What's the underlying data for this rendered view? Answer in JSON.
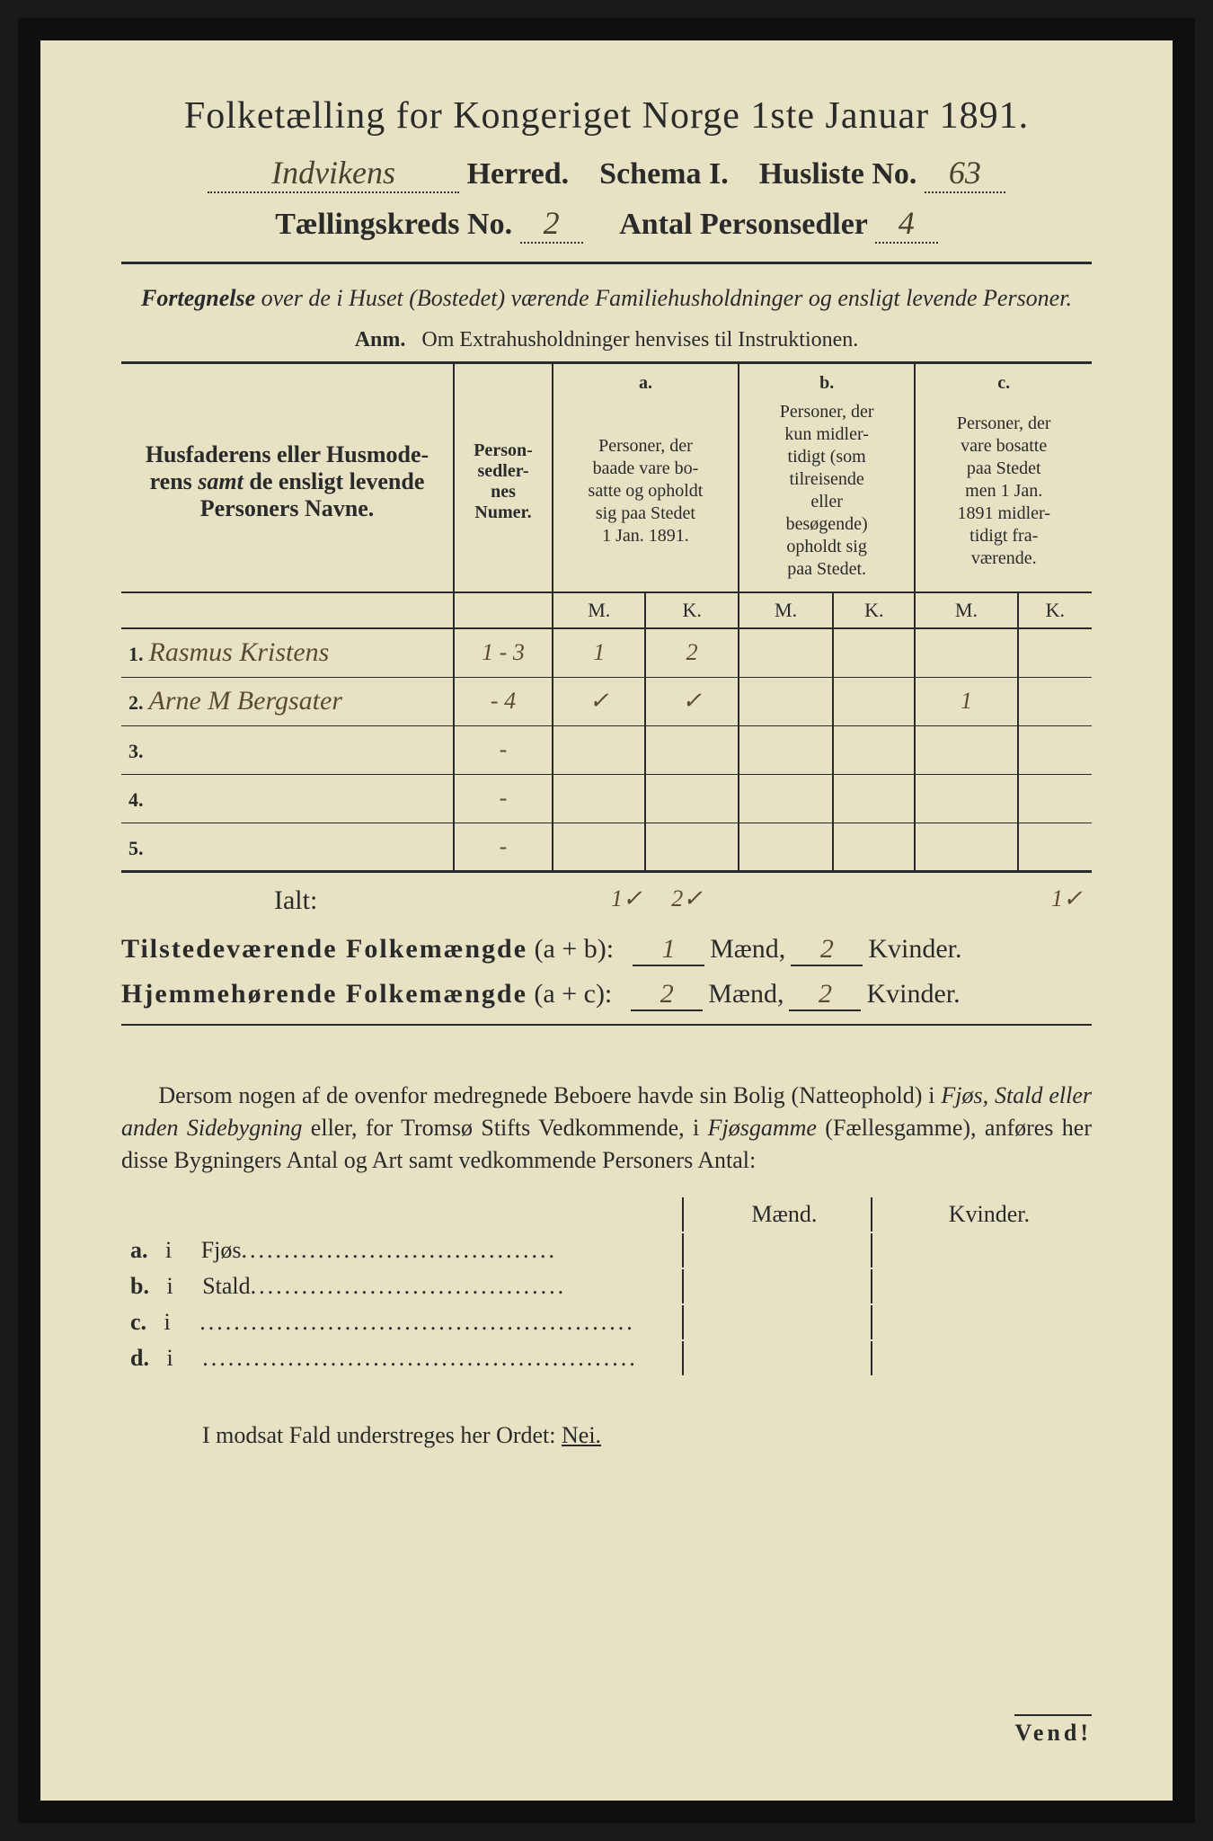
{
  "colors": {
    "paper": "#e8e2c4",
    "ink": "#2a2a2a",
    "border": "#0f0f0f",
    "handwriting": "#5a4a35"
  },
  "typography": {
    "title_fontsize": 42,
    "header_fontsize": 34,
    "body_fontsize": 26,
    "table_header_fontsize": 20,
    "font_family": "Times New Roman"
  },
  "title": "Folketælling for Kongeriget Norge 1ste Januar 1891.",
  "line2": {
    "herred_hw": "Indvikens",
    "herred_label": "Herred.",
    "schema_label": "Schema I.",
    "husliste_label": "Husliste No.",
    "husliste_hw": "63"
  },
  "line3": {
    "kreds_label": "Tællingskreds No.",
    "kreds_hw": "2",
    "antal_label": "Antal Personsedler",
    "antal_hw": "4"
  },
  "subtitle": "Fortegnelse over de i Huset (Bostedet) værende Familiehusholdninger og ensligt levende Personer.",
  "subtitle_prefix": "Fortegnelse",
  "subtitle_rest": " over de i Huset (Bostedet) værende Familiehusholdninger og ensligt levende Personer.",
  "anm_label": "Anm.",
  "anm_text": "Om Extrahusholdninger henvises til Instruktionen.",
  "table": {
    "col1_header": "Husfaderens eller Husmoderens samt de ensligt levende Personers Navne.",
    "col1_header_samt": "samt",
    "col2_header": "Person-sedler-nes Numer.",
    "col_a_label": "a.",
    "col_a_text": "Personer, der baade vare bo-satte og opholdt sig paa Stedet 1 Jan. 1891.",
    "col_b_label": "b.",
    "col_b_text": "Personer, der kun midler-tidigt (som tilreisende eller besøgende) opholdt sig paa Stedet.",
    "col_c_label": "c.",
    "col_c_text": "Personer, der vare bosatte paa Stedet men 1 Jan. 1891 midler-tidigt fra-værende.",
    "m_label": "M.",
    "k_label": "K.",
    "rows": [
      {
        "num": "1.",
        "name_hw": "Rasmus Kristens",
        "sedler_hw": "1 - 3",
        "a_m": "1",
        "a_k": "2",
        "b_m": "",
        "b_k": "",
        "c_m": "",
        "c_k": ""
      },
      {
        "num": "2.",
        "name_hw": "Arne M Bergsater",
        "sedler_hw": "- 4",
        "a_m": "✓",
        "a_k": "✓",
        "b_m": "",
        "b_k": "",
        "c_m": "1",
        "c_k": ""
      },
      {
        "num": "3.",
        "name_hw": "",
        "sedler_hw": "-",
        "a_m": "",
        "a_k": "",
        "b_m": "",
        "b_k": "",
        "c_m": "",
        "c_k": ""
      },
      {
        "num": "4.",
        "name_hw": "",
        "sedler_hw": "-",
        "a_m": "",
        "a_k": "",
        "b_m": "",
        "b_k": "",
        "c_m": "",
        "c_k": ""
      },
      {
        "num": "5.",
        "name_hw": "",
        "sedler_hw": "-",
        "a_m": "",
        "a_k": "",
        "b_m": "",
        "b_k": "",
        "c_m": "",
        "c_k": ""
      }
    ]
  },
  "totals": {
    "ialt_label": "Ialt:",
    "ialt_a_m": "1✓",
    "ialt_a_k": "2✓",
    "ialt_c_m": "1✓",
    "tilstede_label": "Tilstedeværende Folkemængde",
    "tilstede_formula": "(a + b):",
    "tilstede_m": "1",
    "tilstede_k": "2",
    "hjemme_label": "Hjemmehørende Folkemængde",
    "hjemme_formula": "(a + c):",
    "hjemme_m": "2",
    "hjemme_k": "2",
    "maend_label": "Mænd,",
    "kvinder_label": "Kvinder."
  },
  "para": {
    "text1": "Dersom nogen af de ovenfor medregnede Beboere havde sin Bolig (Natteophold) i ",
    "ital1": "Fjøs, Stald eller anden Sidebygning",
    "text2": " eller, for Tromsø Stifts Vedkommende, i ",
    "ital2": "Fjøsgamme",
    "text3": " (Fællesgamme), anføres her disse Bygningers Antal og Art samt vedkommende Personers Antal:"
  },
  "mk_table": {
    "maend": "Mænd.",
    "kvinder": "Kvinder.",
    "rows": [
      {
        "letter": "a.",
        "i": "i",
        "label": "Fjøs"
      },
      {
        "letter": "b.",
        "i": "i",
        "label": "Stald"
      },
      {
        "letter": "c.",
        "i": "i",
        "label": ""
      },
      {
        "letter": "d.",
        "i": "i",
        "label": ""
      }
    ]
  },
  "bottom_text": "I modsat Fald understreges her Ordet: ",
  "bottom_nei": "Nei.",
  "vend": "Vend!"
}
